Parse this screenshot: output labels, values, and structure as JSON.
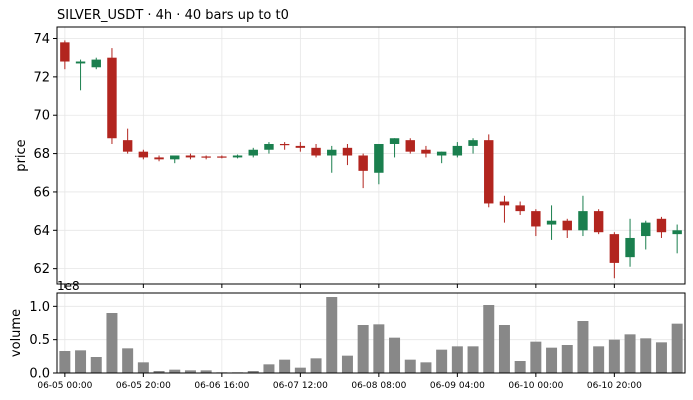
{
  "title": "SILVER_USDT  ·  4h  ·  40 bars up to t0",
  "colors": {
    "up": "#1a7f4e",
    "down": "#b2251f",
    "volume": "#888888",
    "grid": "#e6e6e6",
    "axis": "#000000"
  },
  "chart_data": [
    {
      "type": "candlestick",
      "ylabel": "price",
      "ylim": [
        61.2,
        74.6
      ],
      "y_ticks": [
        62,
        64,
        66,
        68,
        70,
        72,
        74
      ],
      "grid": true,
      "bars": [
        {
          "o": 73.8,
          "h": 73.9,
          "l": 72.4,
          "c": 72.8
        },
        {
          "o": 72.7,
          "h": 72.9,
          "l": 71.3,
          "c": 72.8
        },
        {
          "o": 72.5,
          "h": 73.0,
          "l": 72.4,
          "c": 72.9
        },
        {
          "o": 73.0,
          "h": 73.5,
          "l": 68.5,
          "c": 68.8
        },
        {
          "o": 68.7,
          "h": 69.3,
          "l": 68.0,
          "c": 68.1
        },
        {
          "o": 68.1,
          "h": 68.2,
          "l": 67.7,
          "c": 67.8
        },
        {
          "o": 67.8,
          "h": 67.9,
          "l": 67.6,
          "c": 67.7
        },
        {
          "o": 67.7,
          "h": 67.9,
          "l": 67.5,
          "c": 67.9
        },
        {
          "o": 67.9,
          "h": 68.0,
          "l": 67.7,
          "c": 67.8
        },
        {
          "o": 67.85,
          "h": 67.9,
          "l": 67.7,
          "c": 67.8
        },
        {
          "o": 67.85,
          "h": 67.9,
          "l": 67.75,
          "c": 67.8
        },
        {
          "o": 67.8,
          "h": 67.95,
          "l": 67.75,
          "c": 67.9
        },
        {
          "o": 67.9,
          "h": 68.3,
          "l": 67.8,
          "c": 68.2
        },
        {
          "o": 68.2,
          "h": 68.6,
          "l": 68.0,
          "c": 68.5
        },
        {
          "o": 68.5,
          "h": 68.6,
          "l": 68.2,
          "c": 68.45
        },
        {
          "o": 68.4,
          "h": 68.6,
          "l": 68.1,
          "c": 68.3
        },
        {
          "o": 68.3,
          "h": 68.5,
          "l": 67.8,
          "c": 67.9
        },
        {
          "o": 67.9,
          "h": 68.4,
          "l": 67.0,
          "c": 68.2
        },
        {
          "o": 68.3,
          "h": 68.5,
          "l": 67.4,
          "c": 67.9
        },
        {
          "o": 67.9,
          "h": 68.0,
          "l": 66.2,
          "c": 67.1
        },
        {
          "o": 67.0,
          "h": 68.5,
          "l": 66.4,
          "c": 68.5
        },
        {
          "o": 68.5,
          "h": 68.8,
          "l": 67.8,
          "c": 68.8
        },
        {
          "o": 68.7,
          "h": 68.8,
          "l": 68.0,
          "c": 68.1
        },
        {
          "o": 68.2,
          "h": 68.4,
          "l": 67.8,
          "c": 68.0
        },
        {
          "o": 67.9,
          "h": 68.1,
          "l": 67.5,
          "c": 68.1
        },
        {
          "o": 67.9,
          "h": 68.6,
          "l": 67.8,
          "c": 68.4
        },
        {
          "o": 68.4,
          "h": 68.8,
          "l": 68.0,
          "c": 68.7
        },
        {
          "o": 68.7,
          "h": 69.0,
          "l": 65.2,
          "c": 65.4
        },
        {
          "o": 65.5,
          "h": 65.8,
          "l": 64.4,
          "c": 65.3
        },
        {
          "o": 65.3,
          "h": 65.5,
          "l": 64.8,
          "c": 65.0
        },
        {
          "o": 65.0,
          "h": 65.1,
          "l": 63.7,
          "c": 64.2
        },
        {
          "o": 64.3,
          "h": 65.3,
          "l": 63.5,
          "c": 64.5
        },
        {
          "o": 64.5,
          "h": 64.6,
          "l": 63.6,
          "c": 64.0
        },
        {
          "o": 64.0,
          "h": 65.8,
          "l": 63.7,
          "c": 65.0
        },
        {
          "o": 65.0,
          "h": 65.1,
          "l": 63.8,
          "c": 63.9
        },
        {
          "o": 63.8,
          "h": 63.9,
          "l": 61.5,
          "c": 62.3
        },
        {
          "o": 62.6,
          "h": 64.6,
          "l": 62.1,
          "c": 63.6
        },
        {
          "o": 63.7,
          "h": 64.5,
          "l": 63.0,
          "c": 64.4
        },
        {
          "o": 64.6,
          "h": 64.7,
          "l": 63.6,
          "c": 63.9
        },
        {
          "o": 63.8,
          "h": 64.3,
          "l": 62.8,
          "c": 64.0
        }
      ]
    },
    {
      "type": "bar",
      "ylabel": "volume",
      "scale_label": "1e8",
      "ylim": [
        0,
        1.2
      ],
      "y_ticks": [
        0.0,
        0.5,
        1.0
      ],
      "y_tick_labels": [
        "0.0",
        "0.5",
        "1.0"
      ],
      "grid": true,
      "values": [
        0.33,
        0.34,
        0.24,
        0.9,
        0.37,
        0.16,
        0.03,
        0.05,
        0.04,
        0.04,
        0.01,
        0.01,
        0.03,
        0.13,
        0.2,
        0.08,
        0.22,
        1.14,
        0.26,
        0.72,
        0.73,
        0.53,
        0.2,
        0.16,
        0.35,
        0.4,
        0.4,
        1.02,
        0.72,
        0.18,
        0.47,
        0.38,
        0.42,
        0.78,
        0.4,
        0.5,
        0.58,
        0.52,
        0.46,
        0.74
      ],
      "x_tick_positions": [
        0,
        5,
        10,
        15,
        20,
        25,
        30,
        35
      ],
      "x_tick_labels": [
        "06-05 00:00",
        "06-05 20:00",
        "06-06 16:00",
        "06-07 12:00",
        "06-08 08:00",
        "06-09 04:00",
        "06-10 00:00",
        "06-10 20:00"
      ]
    }
  ]
}
